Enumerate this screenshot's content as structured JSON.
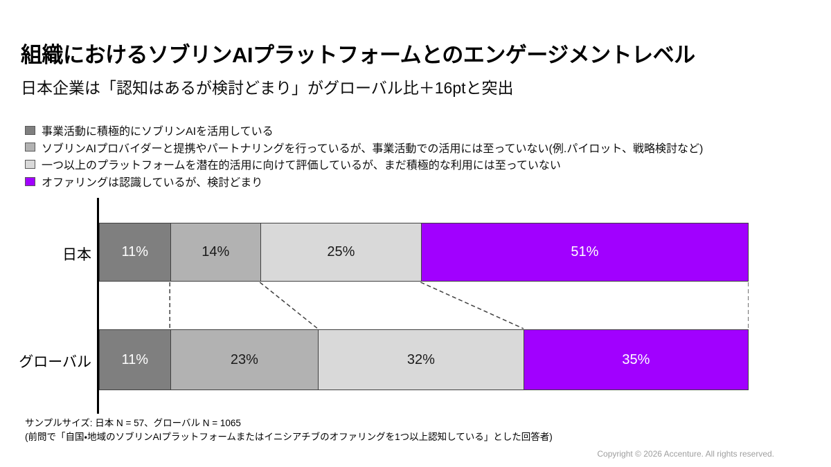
{
  "page": {
    "title": "組織におけるソブリンAIプラットフォームとのエンゲージメントレベル",
    "subtitle": "日本企業は「認知はあるが検討どまり」がグローバル比＋16ptと突出"
  },
  "chart_data": {
    "type": "bar",
    "stacked": true,
    "orientation": "horizontal",
    "unit": "%",
    "categories": [
      "日本",
      "グローバル"
    ],
    "series": [
      {
        "name": "事業活動に積極的にソブリンAIを活用している",
        "color": "#7f7f7f",
        "text_color": "#ffffff",
        "values": [
          11,
          11
        ]
      },
      {
        "name": "ソブリンAIプロバイダーと提携やパートナリングを行っているが、事業活動での活用には至っていない(例.パイロット、戦略検討など)",
        "color": "#b2b2b2",
        "text_color": "#1a1a1a",
        "values": [
          14,
          23
        ]
      },
      {
        "name": "一つ以上のプラットフォームを潜在的活用に向けて評価しているが、まだ積極的な利用には至っていない",
        "color": "#d9d9d9",
        "text_color": "#1a1a1a",
        "values": [
          25,
          32
        ]
      },
      {
        "name": "オファリングは認識しているが、検討どまり",
        "color": "#a100ff",
        "text_color": "#ffffff",
        "values": [
          51,
          35
        ]
      }
    ],
    "connector_line_color": "#404040",
    "legend_position": "top-left",
    "grid": false
  },
  "footer": {
    "sample_size": "サンプルサイズ:  日本 N = 57、グローバル N = 1065",
    "note": "(前問で「自国・地域のソブリンAIプラットフォームまたはイニシアチブのオファリングを1つ以上認知している」とした回答者)",
    "copyright": "Copyright © 2026 Accenture. All rights reserved."
  }
}
